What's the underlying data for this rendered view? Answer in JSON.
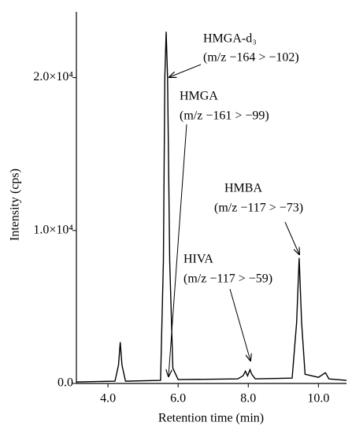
{
  "chart_data": {
    "type": "line",
    "xlabel": "Retention time (min)",
    "ylabel": "Intensity (cps)",
    "x": [
      3.1,
      4.2,
      4.3,
      4.35,
      4.4,
      4.5,
      5.5,
      5.58,
      5.62,
      5.66,
      5.7,
      5.76,
      5.85,
      6.0,
      7.7,
      7.85,
      7.92,
      7.98,
      8.05,
      8.1,
      8.2,
      9.25,
      9.38,
      9.45,
      9.52,
      9.62,
      10.0,
      10.2,
      10.3,
      10.8
    ],
    "series": [
      {
        "color": "#000000",
        "values": [
          100,
          150,
          1200,
          2700,
          1200,
          150,
          200,
          8000,
          20000,
          23000,
          20000,
          8000,
          1000,
          250,
          300,
          500,
          800,
          500,
          900,
          600,
          300,
          350,
          4000,
          8200,
          4000,
          600,
          400,
          700,
          300,
          200
        ]
      }
    ],
    "xlim": [
      3.1,
      10.8
    ],
    "xticks": [
      {
        "value": 4,
        "label": "4.0"
      },
      {
        "value": 6,
        "label": "6.0"
      },
      {
        "value": 8,
        "label": "8.0"
      },
      {
        "value": 10,
        "label": "10.0"
      }
    ],
    "ylim": [
      0,
      24300
    ],
    "yticks": [
      {
        "value": 0,
        "label": "0.0"
      },
      {
        "value": 10000,
        "label": "1.0×10⁴"
      },
      {
        "value": 20000,
        "label": "2.0×10⁴"
      }
    ],
    "annotations": [
      {
        "name": "HMGA-d₃",
        "detail": "(m/z −164 > −102)"
      },
      {
        "name": "HMGA",
        "detail": "(m/z −161 > −99)"
      },
      {
        "name": "HMBA",
        "detail": "(m/z −117 > −73)"
      },
      {
        "name": "HIVA",
        "detail": "(m/z −117 > −59)"
      }
    ]
  }
}
